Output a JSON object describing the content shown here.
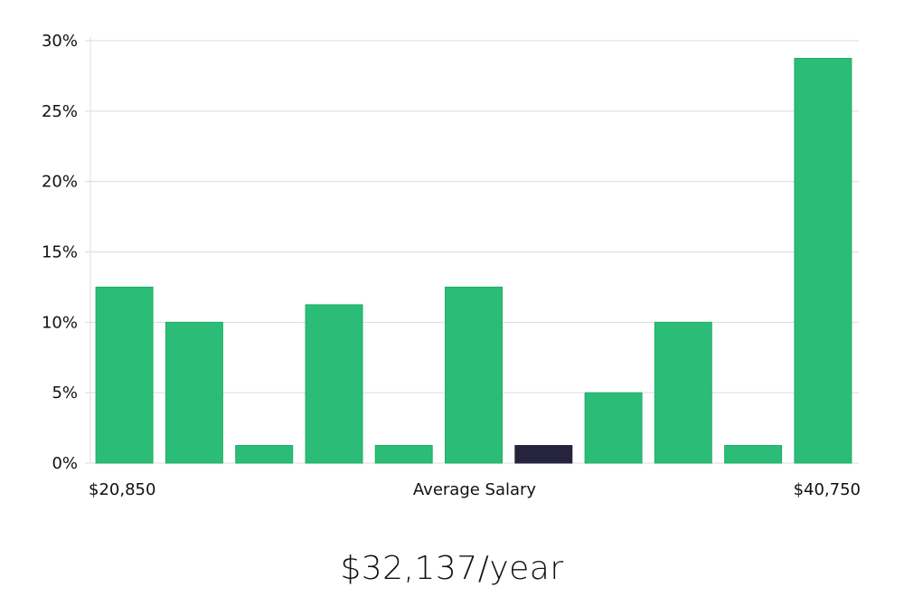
{
  "chart_data": {
    "type": "bar",
    "ylim": [
      0,
      30
    ],
    "y_ticks": [
      "0%",
      "5%",
      "10%",
      "15%",
      "20%",
      "25%",
      "30%"
    ],
    "y_tick_values": [
      0,
      5,
      10,
      15,
      20,
      25,
      30
    ],
    "values": [
      12.5,
      10,
      1.25,
      11.25,
      1.25,
      12.5,
      1.25,
      5,
      10,
      1.25,
      28.75
    ],
    "highlight_index": 6,
    "x_min_label": "$20,850",
    "x_label": "Average Salary",
    "x_max_label": "$40,750",
    "grid": true,
    "colors": {
      "bar": "#2bbd77",
      "bar_stroke": "#1fae68",
      "highlight": "#26233f"
    }
  },
  "summary": {
    "salary": "$32,137/year"
  }
}
